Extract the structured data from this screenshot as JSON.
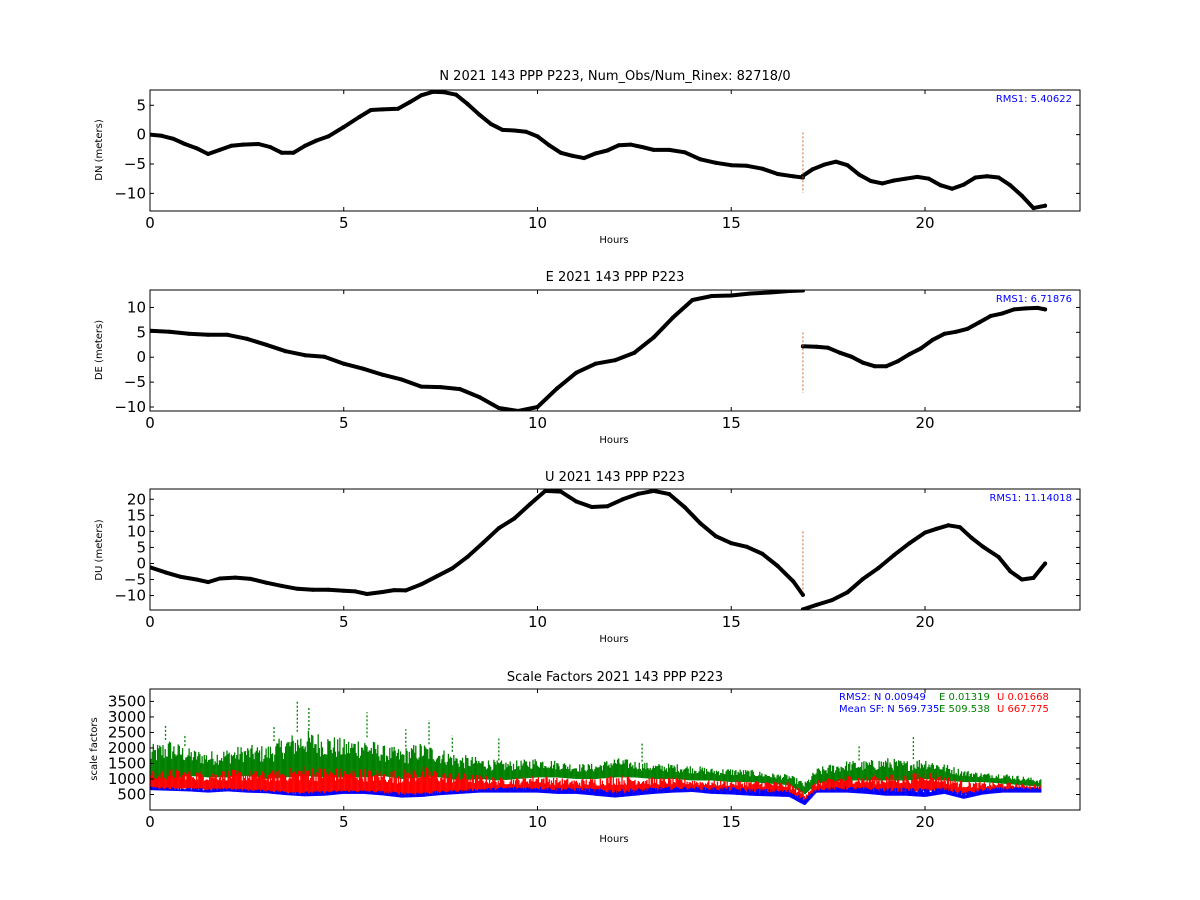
{
  "chart_data": [
    {
      "type": "line",
      "id": "north",
      "title": "N 2021 143 PPP  P223, Num_Obs/Num_Rinex: 82718/0",
      "xlabel": "Hours",
      "ylabel": "DN (meters)",
      "xlim": [
        0,
        24
      ],
      "ylim": [
        -13,
        7.6
      ],
      "xticks": [
        "0",
        "5",
        "10",
        "15",
        "20"
      ],
      "yticks": [
        5,
        0,
        -5,
        -10
      ],
      "grid": false,
      "annotations": [
        {
          "text": "RMS1:  5.40622",
          "color": "#0000ff"
        }
      ],
      "series": [
        {
          "color": "#000000",
          "x": [
            0,
            0.3,
            0.6,
            0.9,
            1.2,
            1.5,
            1.8,
            2.1,
            2.4,
            2.8,
            3.1,
            3.4,
            3.7,
            4.0,
            4.3,
            4.6,
            5.0,
            5.4,
            5.7,
            6.0,
            6.4,
            6.7,
            7.0,
            7.3,
            7.6,
            7.9,
            8.2,
            8.5,
            8.8,
            9.1,
            9.4,
            9.7,
            10.0,
            10.3,
            10.6,
            10.9,
            11.2,
            11.5,
            11.8,
            12.1,
            12.4,
            12.7,
            13.0,
            13.4,
            13.8,
            14.2,
            14.6,
            15.0,
            15.4,
            15.8,
            16.2,
            16.6,
            16.85
          ],
          "y": [
            0,
            -0.2,
            -0.7,
            -1.6,
            -2.3,
            -3.3,
            -2.6,
            -1.9,
            -1.7,
            -1.6,
            -2.1,
            -3.1,
            -3.1,
            -1.9,
            -1.0,
            -0.3,
            1.3,
            3.0,
            4.2,
            4.3,
            4.4,
            5.5,
            6.7,
            7.3,
            7.2,
            6.8,
            5.2,
            3.4,
            1.8,
            0.8,
            0.7,
            0.5,
            -0.3,
            -1.8,
            -3.1,
            -3.6,
            -4.0,
            -3.2,
            -2.7,
            -1.8,
            -1.7,
            -2.1,
            -2.6,
            -2.6,
            -3.0,
            -4.2,
            -4.8,
            -5.2,
            -5.3,
            -5.8,
            -6.7,
            -7.1,
            -7.3
          ]
        },
        {
          "color": "#000000",
          "x": [
            16.85,
            17.1,
            17.4,
            17.7,
            18.0,
            18.3,
            18.6,
            18.9,
            19.2,
            19.5,
            19.8,
            20.1,
            20.4,
            20.7,
            21.0,
            21.3,
            21.6,
            21.9,
            22.2,
            22.5,
            22.8,
            23.1
          ],
          "y": [
            -7.0,
            -5.9,
            -5.1,
            -4.6,
            -5.2,
            -6.8,
            -7.9,
            -8.3,
            -7.8,
            -7.5,
            -7.2,
            -7.5,
            -8.6,
            -9.2,
            -8.5,
            -7.3,
            -7.1,
            -7.3,
            -8.6,
            -10.4,
            -12.5,
            -12.1
          ]
        }
      ]
    },
    {
      "type": "line",
      "id": "east",
      "title": "E 2021 143 PPP  P223",
      "xlabel": "Hours",
      "ylabel": "DE (meters)",
      "xlim": [
        0,
        24
      ],
      "ylim": [
        -10.8,
        13.5
      ],
      "xticks": [
        "0",
        "5",
        "10",
        "15",
        "20"
      ],
      "yticks": [
        10,
        5,
        0,
        -5,
        -10
      ],
      "grid": false,
      "annotations": [
        {
          "text": "RMS1:  6.71876",
          "color": "#0000ff"
        }
      ],
      "series": [
        {
          "color": "#000000",
          "x": [
            0,
            0.5,
            1.0,
            1.5,
            2.0,
            2.5,
            3.0,
            3.5,
            4.0,
            4.5,
            5.0,
            5.5,
            6.0,
            6.5,
            7.0,
            7.5,
            8.0,
            8.5,
            9.0,
            9.5,
            10.0,
            10.5,
            11.0,
            11.5,
            12.0,
            12.5,
            13.0,
            13.5,
            14.0,
            14.5,
            15.0,
            15.5,
            16.0,
            16.5,
            16.85
          ],
          "y": [
            5.3,
            5.1,
            4.7,
            4.5,
            4.5,
            3.7,
            2.5,
            1.2,
            0.4,
            0.1,
            -1.3,
            -2.3,
            -3.5,
            -4.5,
            -5.9,
            -6.0,
            -6.4,
            -8.0,
            -10.2,
            -10.8,
            -10.0,
            -6.3,
            -3.1,
            -1.3,
            -0.6,
            0.9,
            4.0,
            8.0,
            11.5,
            12.3,
            12.4,
            12.8,
            13.0,
            13.3,
            13.4
          ]
        },
        {
          "color": "#000000",
          "x": [
            16.85,
            17.2,
            17.5,
            17.8,
            18.1,
            18.4,
            18.7,
            19.0,
            19.3,
            19.6,
            19.9,
            20.2,
            20.5,
            20.8,
            21.1,
            21.4,
            21.7,
            22.0,
            22.3,
            22.6,
            22.9,
            23.1
          ],
          "y": [
            2.2,
            2.1,
            1.9,
            0.9,
            0.1,
            -1.1,
            -1.8,
            -1.8,
            -0.8,
            0.6,
            1.8,
            3.5,
            4.7,
            5.1,
            5.7,
            7.0,
            8.3,
            8.8,
            9.6,
            9.8,
            9.9,
            9.6
          ]
        }
      ]
    },
    {
      "type": "line",
      "id": "up",
      "title": "U 2021 143 PPP  P223",
      "xlabel": "Hours",
      "ylabel": "DU (meters)",
      "xlim": [
        0,
        24
      ],
      "ylim": [
        -14.5,
        23.2
      ],
      "xticks": [
        "0",
        "5",
        "10",
        "15",
        "20"
      ],
      "yticks": [
        20,
        15,
        10,
        5,
        0,
        -5,
        -10
      ],
      "grid": false,
      "annotations": [
        {
          "text": "RMS1: 11.14018",
          "color": "#0000ff"
        }
      ],
      "series": [
        {
          "color": "#000000",
          "x": [
            0,
            0.4,
            0.8,
            1.2,
            1.5,
            1.8,
            2.2,
            2.6,
            3.0,
            3.4,
            3.8,
            4.2,
            4.6,
            5.0,
            5.3,
            5.6,
            6.0,
            6.3,
            6.6,
            7.0,
            7.4,
            7.8,
            8.2,
            8.6,
            9.0,
            9.4,
            9.8,
            10.2,
            10.6,
            11.0,
            11.4,
            11.8,
            12.2,
            12.6,
            13.0,
            13.4,
            13.8,
            14.2,
            14.6,
            15.0,
            15.4,
            15.8,
            16.2,
            16.6,
            16.85
          ],
          "y": [
            -1.2,
            -2.8,
            -4.2,
            -5.0,
            -5.8,
            -4.7,
            -4.4,
            -4.8,
            -6.0,
            -7.0,
            -7.9,
            -8.2,
            -8.2,
            -8.5,
            -8.7,
            -9.5,
            -8.9,
            -8.3,
            -8.4,
            -6.5,
            -4.0,
            -1.5,
            2.1,
            6.5,
            11.0,
            14.0,
            18.4,
            22.6,
            22.4,
            19.3,
            17.6,
            17.8,
            20.0,
            21.7,
            22.6,
            21.6,
            17.5,
            12.5,
            8.5,
            6.3,
            5.2,
            3.0,
            -0.8,
            -5.6,
            -9.8
          ]
        },
        {
          "color": "#000000",
          "x": [
            16.85,
            17.2,
            17.6,
            18.0,
            18.4,
            18.8,
            19.2,
            19.6,
            20.0,
            20.3,
            20.6,
            20.9,
            21.2,
            21.5,
            21.9,
            22.2,
            22.5,
            22.8,
            23.1
          ],
          "y": [
            -14.3,
            -12.9,
            -11.4,
            -9.0,
            -4.8,
            -1.4,
            2.6,
            6.3,
            9.6,
            10.8,
            11.9,
            11.3,
            8.0,
            5.2,
            2.0,
            -2.4,
            -5.0,
            -4.5,
            0.0
          ]
        }
      ]
    },
    {
      "type": "scatter",
      "id": "scale-factors",
      "title": "Scale Factors 2021 143 PPP  P223",
      "xlabel": "Hours",
      "ylabel": "scale factors",
      "xlim": [
        0,
        24
      ],
      "ylim": [
        0,
        3900
      ],
      "xticks": [
        "0",
        "5",
        "10",
        "15",
        "20"
      ],
      "yticks": [
        3500,
        3000,
        2500,
        2000,
        1500,
        1000,
        500
      ],
      "grid": false,
      "annotations": [
        {
          "row": 1,
          "segments": [
            {
              "text": "RMS2: N  0.00949",
              "color": "#0000ff"
            },
            {
              "text": "E  0.01319",
              "color": "#008000"
            },
            {
              "text": "U  0.01668",
              "color": "#ff0000"
            }
          ]
        },
        {
          "row": 2,
          "segments": [
            {
              "text": "Mean SF: N 569.735",
              "color": "#0000ff"
            },
            {
              "text": "E 509.538",
              "color": "#008000"
            },
            {
              "text": "U 667.775",
              "color": "#ff0000"
            }
          ]
        }
      ],
      "series": [
        {
          "component": "E",
          "color": "#008000",
          "x": [
            0,
            0.5,
            1.0,
            1.5,
            2.0,
            2.5,
            3.0,
            3.5,
            4.0,
            4.5,
            5.0,
            5.5,
            6.0,
            6.5,
            7.0,
            7.5,
            8.0,
            8.5,
            9.0,
            9.5,
            10.0,
            10.5,
            11.0,
            11.5,
            12.0,
            12.5,
            13.0,
            13.5,
            14.0,
            14.5,
            15.0,
            15.5,
            16.0,
            16.5,
            16.9,
            17.2,
            17.6,
            18.0,
            18.5,
            19.0,
            19.5,
            20.0,
            20.5,
            21.0,
            21.5,
            22.0,
            22.5,
            23.0
          ],
          "low": [
            900,
            1000,
            1100,
            1050,
            1050,
            1100,
            1000,
            1050,
            1100,
            1050,
            1050,
            1050,
            1100,
            1000,
            1050,
            1050,
            950,
            1000,
            950,
            1000,
            1050,
            1050,
            1000,
            1000,
            1050,
            1050,
            1000,
            1000,
            950,
            950,
            900,
            900,
            850,
            800,
            500,
            850,
            900,
            950,
            950,
            950,
            950,
            1000,
            950,
            900,
            900,
            850,
            800,
            750
          ],
          "high": [
            2100,
            2300,
            2000,
            1900,
            2000,
            2100,
            2100,
            2400,
            2600,
            2500,
            2300,
            2400,
            2100,
            2000,
            2200,
            2000,
            1800,
            1700,
            1600,
            1600,
            1700,
            1600,
            1500,
            1500,
            1700,
            1600,
            1500,
            1500,
            1450,
            1350,
            1350,
            1300,
            1200,
            1150,
            900,
            1350,
            1500,
            1600,
            1600,
            1700,
            1600,
            1700,
            1500,
            1300,
            1200,
            1200,
            1100,
            1000
          ],
          "spikes": [
            [
              0.4,
              2750
            ],
            [
              0.9,
              2450
            ],
            [
              3.2,
              2700
            ],
            [
              3.8,
              3550
            ],
            [
              4.1,
              3300
            ],
            [
              5.6,
              3150
            ],
            [
              6.6,
              2600
            ],
            [
              7.2,
              2900
            ],
            [
              7.8,
              2400
            ],
            [
              9.0,
              2300
            ],
            [
              12.7,
              2150
            ],
            [
              18.3,
              2050
            ],
            [
              19.7,
              2400
            ]
          ]
        },
        {
          "component": "U",
          "color": "#ff0000",
          "x": [
            0,
            0.5,
            1.0,
            1.5,
            2.0,
            2.5,
            3.0,
            3.5,
            4.0,
            4.5,
            5.0,
            5.5,
            6.0,
            6.5,
            7.0,
            7.5,
            8.0,
            8.5,
            9.0,
            9.5,
            10.0,
            10.5,
            11.0,
            11.5,
            12.0,
            12.5,
            13.0,
            13.5,
            14.0,
            14.5,
            15.0,
            15.5,
            16.0,
            16.5,
            16.9,
            17.2,
            17.6,
            18.0,
            18.5,
            19.0,
            19.5,
            20.0,
            20.5,
            21.0,
            21.5,
            22.0,
            22.5,
            23.0
          ],
          "low": [
            650,
            680,
            700,
            650,
            650,
            620,
            600,
            560,
            520,
            520,
            560,
            560,
            520,
            480,
            500,
            560,
            560,
            600,
            620,
            620,
            620,
            600,
            580,
            540,
            520,
            560,
            600,
            620,
            640,
            620,
            620,
            580,
            540,
            520,
            200,
            600,
            620,
            620,
            580,
            560,
            560,
            620,
            640,
            500,
            560,
            600,
            620,
            600
          ],
          "high": [
            1250,
            1350,
            1300,
            1250,
            1300,
            1300,
            1250,
            1350,
            1450,
            1400,
            1350,
            1350,
            1300,
            1300,
            1450,
            1250,
            1200,
            1150,
            1050,
            1050,
            1150,
            1050,
            1000,
            1050,
            1150,
            1100,
            1050,
            1050,
            1000,
            950,
            950,
            950,
            950,
            900,
            600,
            950,
            1050,
            1150,
            1100,
            1150,
            1150,
            1300,
            1100,
            950,
            900,
            900,
            850,
            850
          ]
        },
        {
          "component": "N",
          "color": "#0000ff",
          "x": [
            0,
            0.5,
            1.0,
            1.5,
            2.0,
            2.5,
            3.0,
            3.5,
            4.0,
            4.5,
            5.0,
            5.5,
            6.0,
            6.5,
            7.0,
            7.5,
            8.0,
            8.5,
            9.0,
            9.5,
            10.0,
            10.5,
            11.0,
            11.5,
            12.0,
            12.5,
            13.0,
            13.5,
            14.0,
            14.5,
            15.0,
            15.5,
            16.0,
            16.5,
            16.9,
            17.2,
            17.6,
            18.0,
            18.5,
            19.0,
            19.5,
            20.0,
            20.5,
            21.0,
            21.5,
            22.0,
            22.5,
            23.0
          ],
          "low": [
            640,
            620,
            600,
            560,
            600,
            560,
            540,
            480,
            440,
            460,
            520,
            520,
            470,
            400,
            420,
            480,
            520,
            560,
            560,
            560,
            560,
            520,
            520,
            460,
            400,
            460,
            520,
            560,
            580,
            520,
            500,
            460,
            440,
            420,
            150,
            560,
            560,
            560,
            520,
            460,
            460,
            420,
            520,
            360,
            500,
            560,
            560,
            560
          ],
          "high": [
            760,
            740,
            720,
            700,
            720,
            680,
            660,
            620,
            600,
            620,
            640,
            640,
            620,
            580,
            580,
            620,
            660,
            700,
            740,
            760,
            760,
            740,
            720,
            700,
            680,
            700,
            740,
            760,
            760,
            740,
            740,
            700,
            680,
            660,
            400,
            700,
            740,
            760,
            740,
            720,
            720,
            700,
            740,
            600,
            700,
            740,
            740,
            740
          ]
        }
      ]
    }
  ]
}
